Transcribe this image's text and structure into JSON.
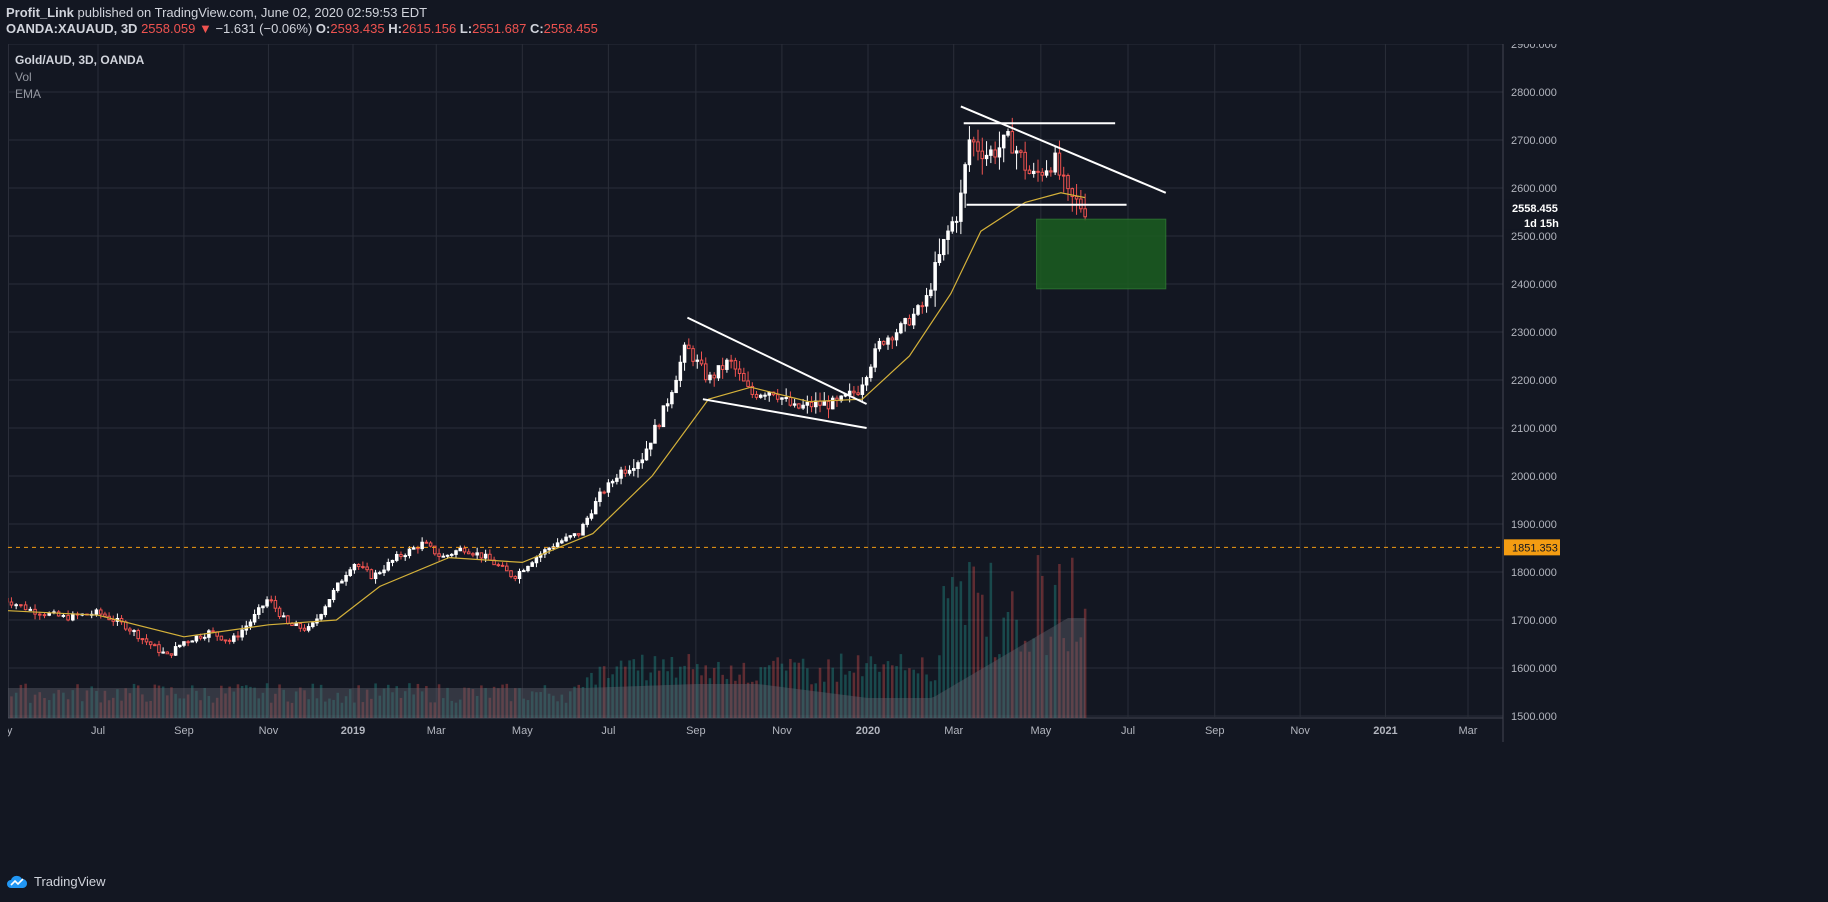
{
  "header": {
    "publisher": "Profit_Link",
    "published_text": "published on TradingView.com, June 02, 2020 02:59:53 EDT",
    "symbol": "OANDA:XAUAUD, 3D",
    "last": "2558.059",
    "change": "−1.631 (−0.06%)",
    "open_label": "O:",
    "open": "2593.435",
    "high_label": "H:",
    "high": "2615.156",
    "low_label": "L:",
    "low": "2551.687",
    "close_label": "C:",
    "close": "2558.455"
  },
  "legend": {
    "title": "Gold/AUD, 3D, OANDA",
    "vol": "Vol",
    "ema": "EMA"
  },
  "footer": {
    "brand": "TradingView",
    "icon": "tradingview-cloud-icon"
  },
  "colors": {
    "background": "#131722",
    "grid": "#2a2e39",
    "up": "#ffffff",
    "down": "#ef5350",
    "ema": "#d4b13a",
    "volume_ma": "#5d606b",
    "box": "#1b5e20",
    "alert": "#f39c12"
  },
  "chart_data": {
    "type": "candlestick",
    "symbol": "Gold/AUD, 3D, OANDA",
    "ylim": [
      1500,
      2900
    ],
    "y_ticks": [
      "2900.000",
      "2800.000",
      "2700.000",
      "2600.000",
      "2500.000",
      "2400.000",
      "2300.000",
      "2200.000",
      "2100.000",
      "2000.000",
      "1900.000",
      "1800.000",
      "1700.000",
      "1600.000",
      "1500.000"
    ],
    "x_ticks": [
      "May",
      "Jul",
      "Sep",
      "Nov",
      "2019",
      "Mar",
      "May",
      "Jul",
      "Sep",
      "Nov",
      "2020",
      "Mar",
      "May",
      "Jul",
      "Sep",
      "Nov",
      "2021",
      "Mar"
    ],
    "price_label": "2558.455",
    "countdown_label": "1d 15h",
    "horizontal_line": {
      "value": 1851.353,
      "label": "1851.353"
    },
    "price_series": [
      {
        "date": "2018-05-01",
        "price": 1745
      },
      {
        "date": "2018-05-20",
        "price": 1720
      },
      {
        "date": "2018-06-10",
        "price": 1705
      },
      {
        "date": "2018-07-01",
        "price": 1715
      },
      {
        "date": "2018-07-20",
        "price": 1690
      },
      {
        "date": "2018-08-05",
        "price": 1655
      },
      {
        "date": "2018-08-20",
        "price": 1625
      },
      {
        "date": "2018-09-01",
        "price": 1655
      },
      {
        "date": "2018-09-20",
        "price": 1675
      },
      {
        "date": "2018-10-05",
        "price": 1655
      },
      {
        "date": "2018-10-20",
        "price": 1700
      },
      {
        "date": "2018-11-01",
        "price": 1745
      },
      {
        "date": "2018-11-15",
        "price": 1690
      },
      {
        "date": "2018-12-01",
        "price": 1680
      },
      {
        "date": "2018-12-15",
        "price": 1745
      },
      {
        "date": "2019-01-01",
        "price": 1820
      },
      {
        "date": "2019-01-15",
        "price": 1790
      },
      {
        "date": "2019-02-01",
        "price": 1830
      },
      {
        "date": "2019-02-20",
        "price": 1860
      },
      {
        "date": "2019-03-05",
        "price": 1830
      },
      {
        "date": "2019-03-20",
        "price": 1850
      },
      {
        "date": "2019-04-05",
        "price": 1830
      },
      {
        "date": "2019-04-25",
        "price": 1790
      },
      {
        "date": "2019-05-10",
        "price": 1830
      },
      {
        "date": "2019-05-25",
        "price": 1860
      },
      {
        "date": "2019-06-10",
        "price": 1880
      },
      {
        "date": "2019-06-25",
        "price": 1960
      },
      {
        "date": "2019-07-10",
        "price": 2010
      },
      {
        "date": "2019-07-25",
        "price": 2040
      },
      {
        "date": "2019-08-10",
        "price": 2140
      },
      {
        "date": "2019-08-25",
        "price": 2270
      },
      {
        "date": "2019-09-10",
        "price": 2200
      },
      {
        "date": "2019-09-25",
        "price": 2240
      },
      {
        "date": "2019-10-10",
        "price": 2170
      },
      {
        "date": "2019-10-25",
        "price": 2180
      },
      {
        "date": "2019-11-10",
        "price": 2140
      },
      {
        "date": "2019-11-25",
        "price": 2150
      },
      {
        "date": "2019-12-10",
        "price": 2150
      },
      {
        "date": "2019-12-25",
        "price": 2180
      },
      {
        "date": "2020-01-10",
        "price": 2280
      },
      {
        "date": "2020-01-25",
        "price": 2310
      },
      {
        "date": "2020-02-10",
        "price": 2360
      },
      {
        "date": "2020-02-25",
        "price": 2500
      },
      {
        "date": "2020-03-05",
        "price": 2560
      },
      {
        "date": "2020-03-12",
        "price": 2700
      },
      {
        "date": "2020-03-25",
        "price": 2670
      },
      {
        "date": "2020-04-10",
        "price": 2700
      },
      {
        "date": "2020-04-25",
        "price": 2620
      },
      {
        "date": "2020-05-10",
        "price": 2660
      },
      {
        "date": "2020-05-20",
        "price": 2580
      },
      {
        "date": "2020-06-01",
        "price": 2558
      }
    ],
    "ema": [
      {
        "date": "2018-05-01",
        "value": 1720
      },
      {
        "date": "2018-07-01",
        "value": 1710
      },
      {
        "date": "2018-09-01",
        "value": 1665
      },
      {
        "date": "2018-11-01",
        "value": 1690
      },
      {
        "date": "2018-12-20",
        "value": 1700
      },
      {
        "date": "2019-01-20",
        "value": 1770
      },
      {
        "date": "2019-03-10",
        "value": 1830
      },
      {
        "date": "2019-05-01",
        "value": 1820
      },
      {
        "date": "2019-06-20",
        "value": 1880
      },
      {
        "date": "2019-08-01",
        "value": 2000
      },
      {
        "date": "2019-09-10",
        "value": 2160
      },
      {
        "date": "2019-10-10",
        "value": 2185
      },
      {
        "date": "2019-11-20",
        "value": 2155
      },
      {
        "date": "2019-12-28",
        "value": 2160
      },
      {
        "date": "2020-01-30",
        "value": 2250
      },
      {
        "date": "2020-02-28",
        "value": 2380
      },
      {
        "date": "2020-03-20",
        "value": 2510
      },
      {
        "date": "2020-04-20",
        "value": 2570
      },
      {
        "date": "2020-05-15",
        "value": 2590
      },
      {
        "date": "2020-06-01",
        "value": 2580
      }
    ],
    "drawings": [
      {
        "type": "trendline",
        "from": {
          "date": "2019-08-26",
          "price": 2330
        },
        "to": {
          "date": "2019-12-31",
          "price": 2150
        }
      },
      {
        "type": "trendline",
        "from": {
          "date": "2019-09-06",
          "price": 2160
        },
        "to": {
          "date": "2019-12-31",
          "price": 2100
        }
      },
      {
        "type": "trendline",
        "from": {
          "date": "2020-03-06",
          "price": 2770
        },
        "to": {
          "date": "2020-07-28",
          "price": 2590
        }
      },
      {
        "type": "horizontal_segment",
        "from": {
          "date": "2020-03-08",
          "price": 2735
        },
        "to": {
          "date": "2020-06-22",
          "price": 2735
        }
      },
      {
        "type": "horizontal_segment",
        "from": {
          "date": "2020-03-10",
          "price": 2565
        },
        "to": {
          "date": "2020-06-30",
          "price": 2565
        }
      },
      {
        "type": "rectangle",
        "from": {
          "date": "2020-04-28",
          "price": 2535
        },
        "to": {
          "date": "2020-07-28",
          "price": 2390
        }
      }
    ]
  }
}
